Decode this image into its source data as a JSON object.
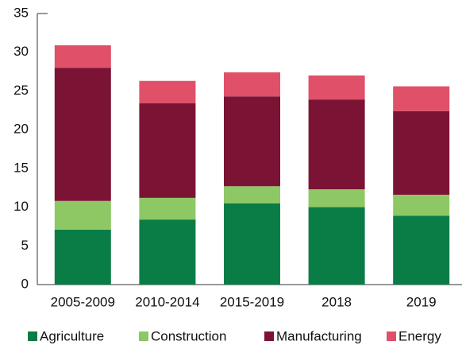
{
  "chart_data": {
    "type": "stacked_bar",
    "categories": [
      "2005-2009",
      "2010-2014",
      "2015-2019",
      "2018",
      "2019"
    ],
    "series": [
      {
        "name": "Agriculture",
        "color": "#0a7d46",
        "values": [
          7.1,
          8.4,
          10.5,
          10.0,
          8.9
        ]
      },
      {
        "name": "Construction",
        "color": "#8dc865",
        "values": [
          3.7,
          2.8,
          2.2,
          2.3,
          2.7
        ]
      },
      {
        "name": "Manufacturing",
        "color": "#7b1434",
        "values": [
          17.2,
          12.2,
          11.6,
          11.6,
          10.8
        ]
      },
      {
        "name": "Energy",
        "color": "#e05068",
        "values": [
          2.9,
          2.9,
          3.1,
          3.1,
          3.2
        ]
      }
    ],
    "ylim": [
      0,
      35
    ],
    "yticks": [
      0,
      5,
      10,
      15,
      20,
      25,
      30,
      35
    ],
    "grid": false
  }
}
